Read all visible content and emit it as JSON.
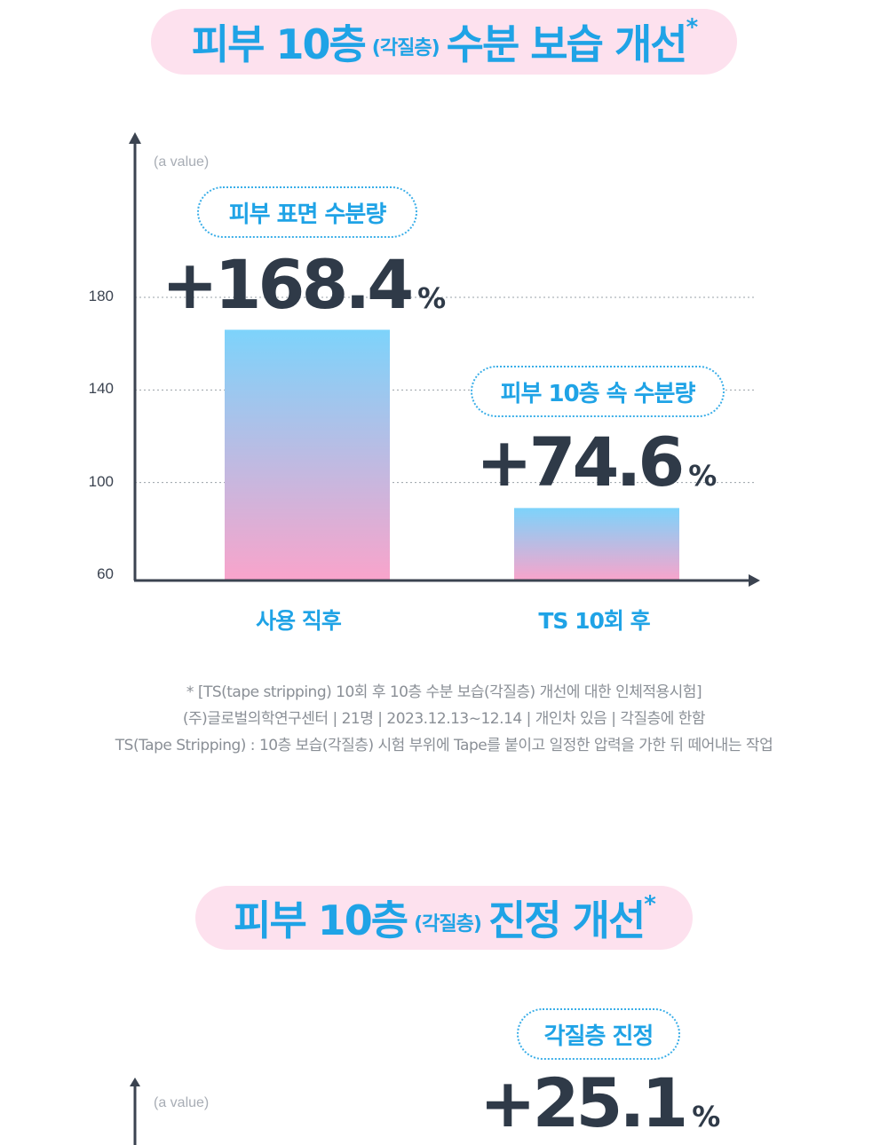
{
  "section1": {
    "title_main": "피부 10층",
    "title_paren": "(각질층)",
    "title_rest": "수분 보습 개선",
    "title_star": "*",
    "unit_label": "(a value)",
    "callouts": [
      {
        "label": "피부 표면 수분량",
        "value": "+168.4",
        "unit": "%"
      },
      {
        "label": "피부 10층 속 수분량",
        "value": "+74.6",
        "unit": "%"
      }
    ],
    "footnotes": [
      "* [TS(tape stripping) 10회 후 10층 수분 보습(각질층) 개선에 대한 인체적용시험]",
      "(주)글로벌의학연구센터  |  21명  |  2023.12.13~12.14  |  개인차 있음  |  각질층에 한함",
      "TS(Tape Stripping) : 10층 보습(각질층) 시험 부위에 Tape를 붙이고 일정한 압력을 가한 뒤 떼어내는 작업"
    ]
  },
  "section2": {
    "title_main": "피부 10층",
    "title_paren": "(각질층)",
    "title_rest": "진정 개선",
    "title_star": "*",
    "unit_label": "(a value)",
    "callout": {
      "label": "각질층 진정",
      "value": "+25.1",
      "unit": "%"
    }
  },
  "chart_data": {
    "type": "bar",
    "categories": [
      "사용 직후",
      "TS 10회 후"
    ],
    "values": [
      166,
      89
    ],
    "yticks": [
      60,
      100,
      140,
      180
    ],
    "ylim": [
      60,
      180
    ],
    "xlabel": "",
    "ylabel": "(a value)",
    "grid": "dotted horizontal",
    "colors": {
      "bar_top": "#7dd3fb",
      "bar_bottom": "#f9a4cb",
      "axis": "#3b4350",
      "grid": "#9aa0a8"
    }
  }
}
